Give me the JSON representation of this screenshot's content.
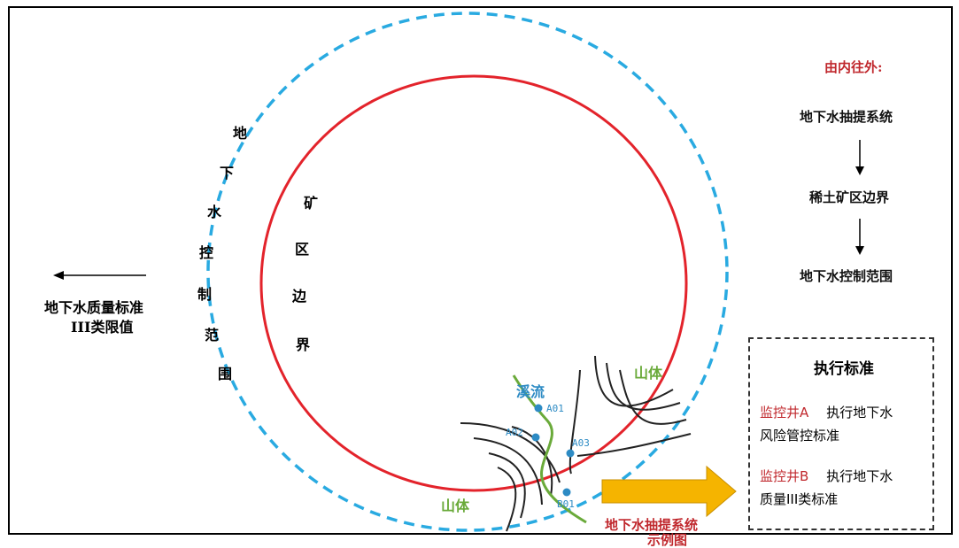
{
  "diagram": {
    "outer_label": [
      "地",
      "下",
      "水",
      "控",
      "制",
      "范",
      "围"
    ],
    "inner_label": [
      "矿",
      "区",
      "边",
      "界"
    ],
    "left_label": {
      "line1": "地下水质量标准",
      "line2": "III类限值"
    },
    "flow": {
      "header": "由内往外:",
      "steps": [
        "地下水抽提系统",
        "稀土矿区边界",
        "地下水控制范围"
      ]
    },
    "map_labels": {
      "stream": "溪流",
      "mountain_right": "山体",
      "mountain_left": "山体",
      "wells": [
        "A01",
        "A02",
        "A03",
        "B01"
      ],
      "example": {
        "line1": "地下水抽提系统",
        "line2": "示例图"
      }
    },
    "standard": {
      "title": "执行标准",
      "items": [
        {
          "well": "监控井A",
          "rest1": "执行地下水",
          "line2": "风险管控标准"
        },
        {
          "well": "监控井B",
          "rest1": "执行地下水",
          "line2": "质量III类标准"
        }
      ]
    },
    "colors": {
      "outer_circle": "#29aae1",
      "inner_circle": "#e3232b",
      "stream": "#6aaa3a",
      "accent_red": "#c0282d",
      "well_dot": "#2d8bc4",
      "arrow": "#f5b400"
    }
  }
}
